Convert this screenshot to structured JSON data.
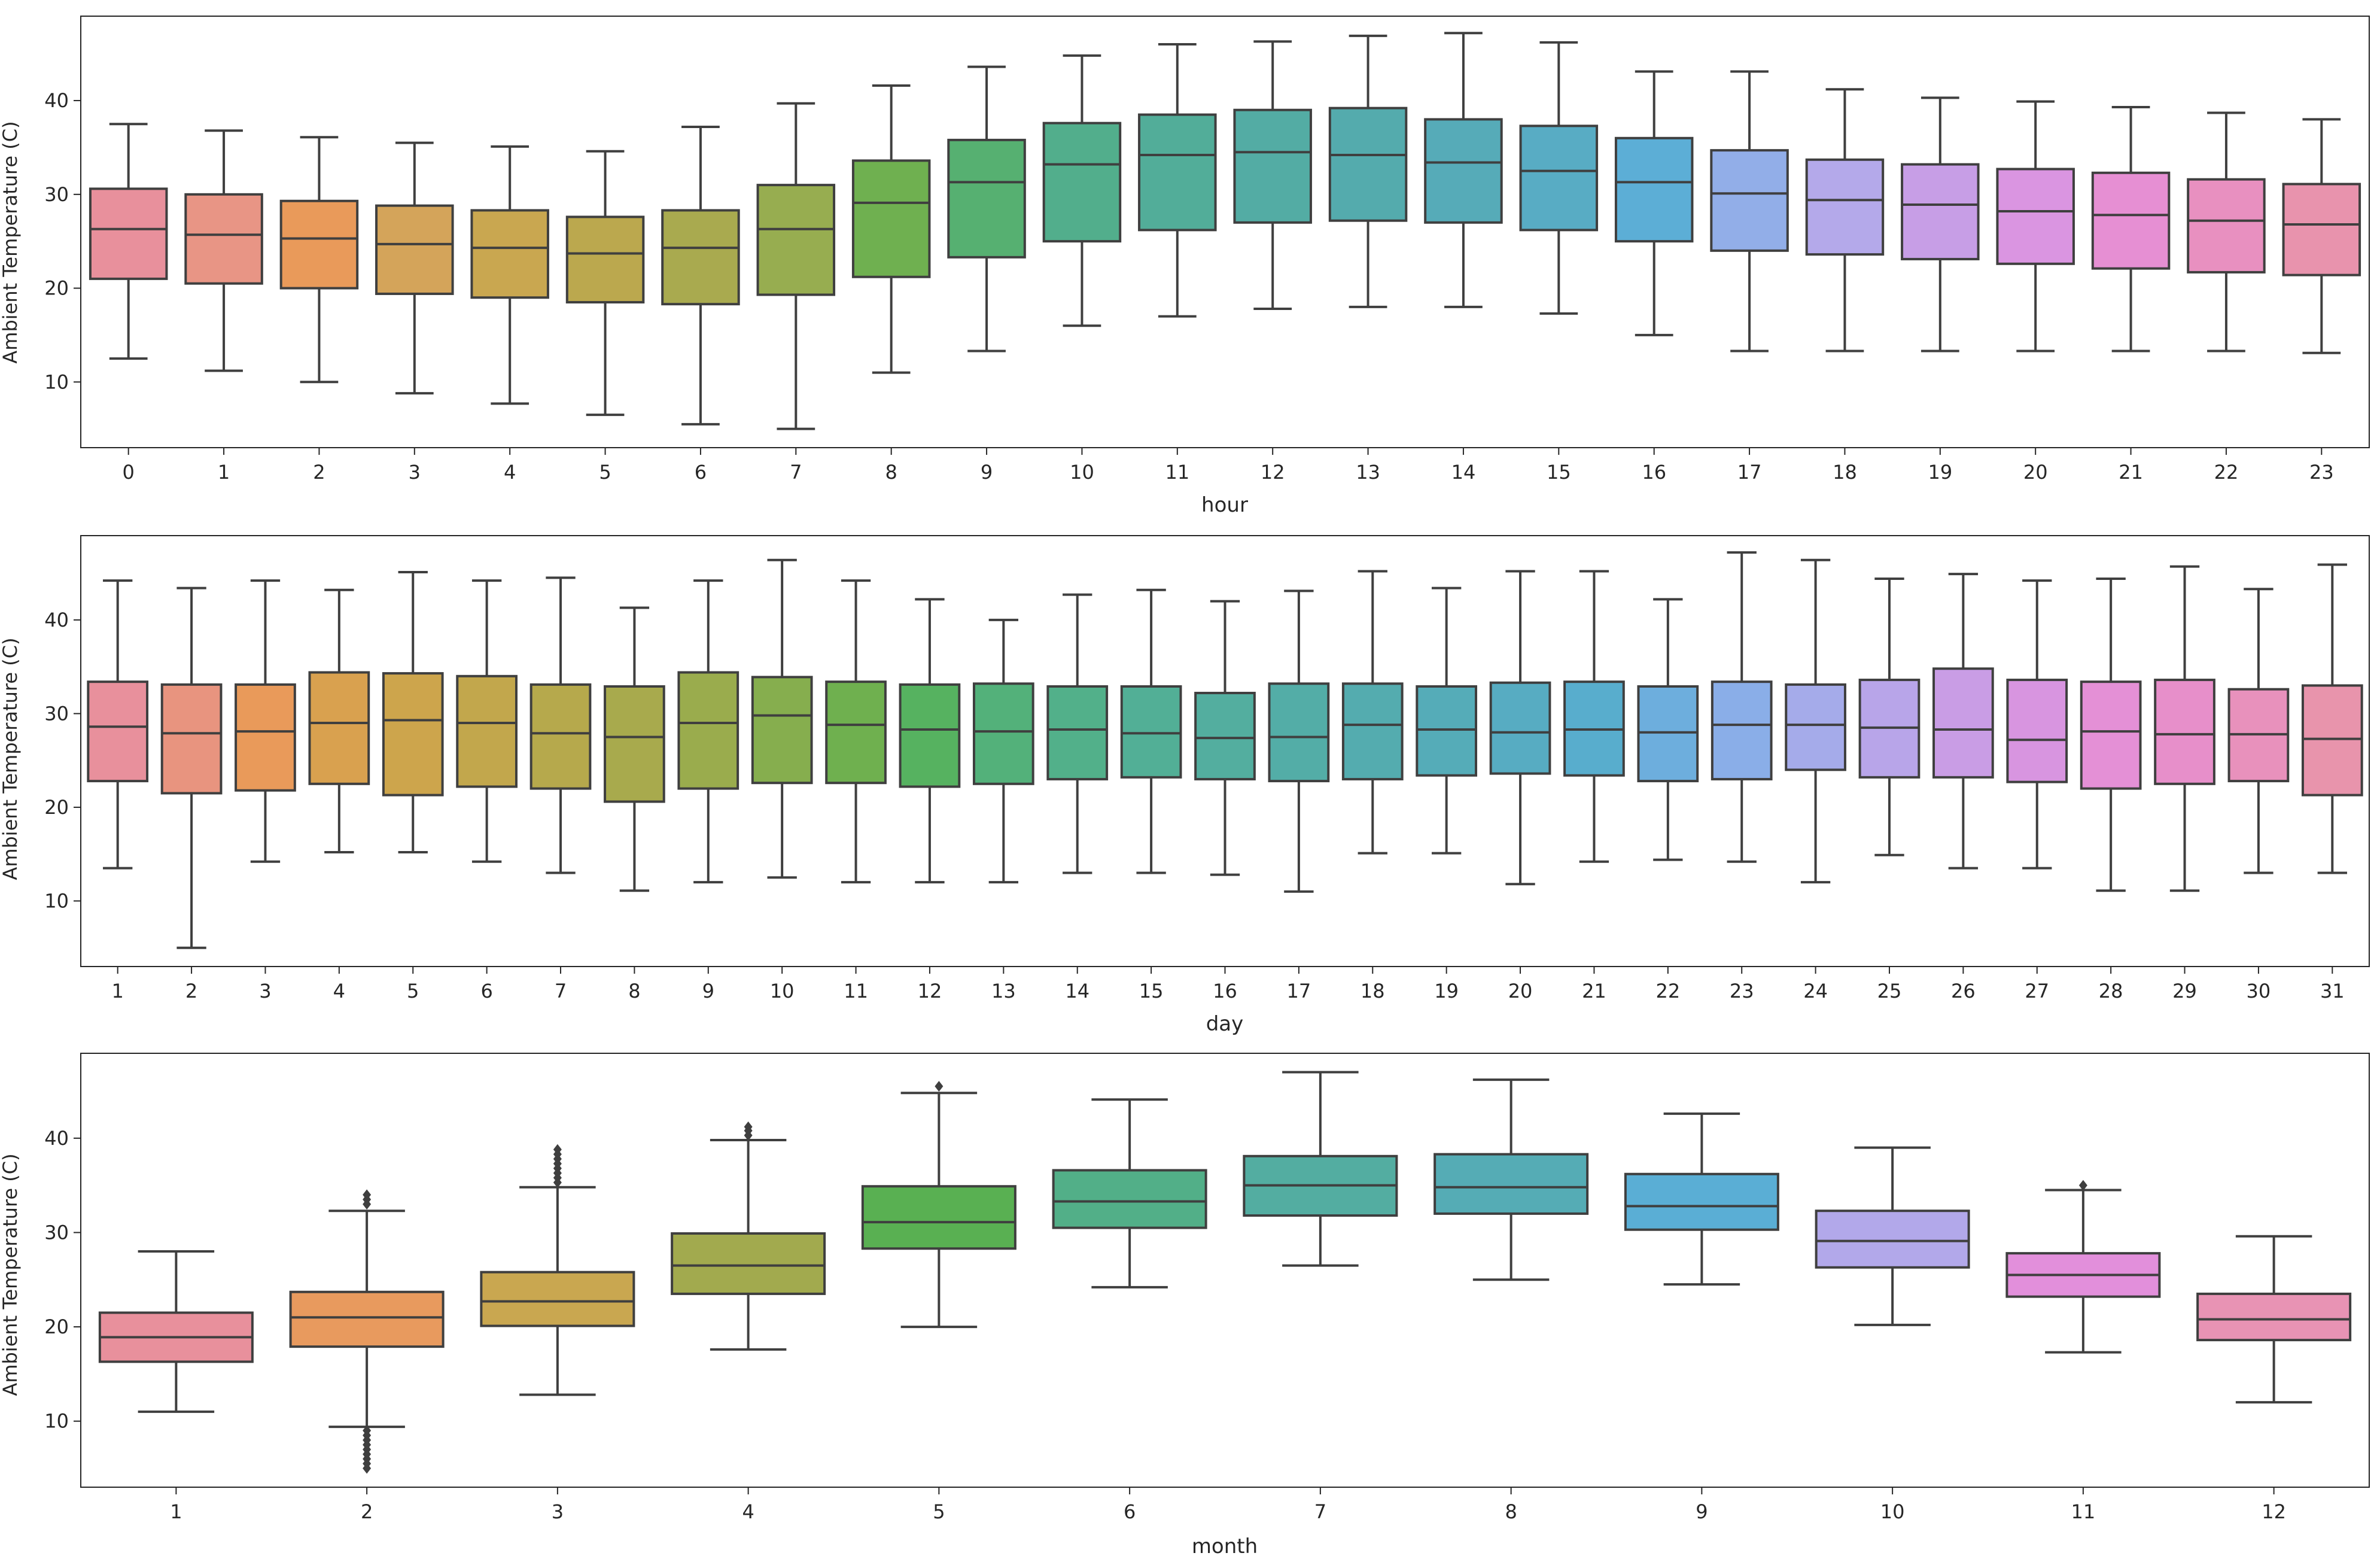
{
  "chart_data": [
    {
      "type": "box",
      "xlabel": "hour",
      "ylabel": "Ambient Temperature (C)",
      "ylim": [
        3,
        49
      ],
      "yticks": [
        10,
        20,
        30,
        40
      ],
      "categories": [
        "0",
        "1",
        "2",
        "3",
        "4",
        "5",
        "6",
        "7",
        "8",
        "9",
        "10",
        "11",
        "12",
        "13",
        "14",
        "15",
        "16",
        "17",
        "18",
        "19",
        "20",
        "21",
        "22",
        "23"
      ],
      "boxes": [
        {
          "min": 12.5,
          "q1": 21.0,
          "median": 26.3,
          "q3": 30.6,
          "max": 37.5,
          "color": "#e8909c"
        },
        {
          "min": 11.2,
          "q1": 20.5,
          "median": 25.7,
          "q3": 30.0,
          "max": 36.8,
          "color": "#e89585"
        },
        {
          "min": 10.0,
          "q1": 20.0,
          "median": 25.3,
          "q3": 29.3,
          "max": 36.1,
          "color": "#e99a5a"
        },
        {
          "min": 8.8,
          "q1": 19.4,
          "median": 24.7,
          "q3": 28.8,
          "max": 35.5,
          "color": "#d4a45a"
        },
        {
          "min": 7.7,
          "q1": 19.0,
          "median": 24.3,
          "q3": 28.3,
          "max": 35.1,
          "color": "#c9a750"
        },
        {
          "min": 6.5,
          "q1": 18.5,
          "median": 23.7,
          "q3": 27.6,
          "max": 34.6,
          "color": "#bba84e"
        },
        {
          "min": 5.5,
          "q1": 18.3,
          "median": 24.3,
          "q3": 28.3,
          "max": 37.2,
          "color": "#a9aa4f"
        },
        {
          "min": 5.0,
          "q1": 19.3,
          "median": 26.3,
          "q3": 31.0,
          "max": 39.7,
          "color": "#97ad50"
        },
        {
          "min": 11.0,
          "q1": 21.2,
          "median": 29.1,
          "q3": 33.6,
          "max": 41.6,
          "color": "#6fb050"
        },
        {
          "min": 13.3,
          "q1": 23.3,
          "median": 31.3,
          "q3": 35.8,
          "max": 43.6,
          "color": "#56b071"
        },
        {
          "min": 16.0,
          "q1": 25.0,
          "median": 33.2,
          "q3": 37.6,
          "max": 44.8,
          "color": "#52ae8c"
        },
        {
          "min": 17.0,
          "q1": 26.2,
          "median": 34.2,
          "q3": 38.5,
          "max": 46.0,
          "color": "#52ad99"
        },
        {
          "min": 17.8,
          "q1": 27.0,
          "median": 34.5,
          "q3": 39.0,
          "max": 46.3,
          "color": "#53aca4"
        },
        {
          "min": 18.0,
          "q1": 27.2,
          "median": 34.2,
          "q3": 39.2,
          "max": 46.9,
          "color": "#54abad"
        },
        {
          "min": 18.0,
          "q1": 27.0,
          "median": 33.4,
          "q3": 38.0,
          "max": 47.2,
          "color": "#56abb8"
        },
        {
          "min": 17.3,
          "q1": 26.2,
          "median": 32.5,
          "q3": 37.3,
          "max": 46.2,
          "color": "#58acc4"
        },
        {
          "min": 15.0,
          "q1": 25.0,
          "median": 31.3,
          "q3": 36.0,
          "max": 43.1,
          "color": "#5caed6"
        },
        {
          "min": 13.3,
          "q1": 24.0,
          "median": 30.1,
          "q3": 34.7,
          "max": 43.1,
          "color": "#92aee8"
        },
        {
          "min": 13.3,
          "q1": 23.6,
          "median": 29.4,
          "q3": 33.7,
          "max": 41.2,
          "color": "#b4a9ea"
        },
        {
          "min": 13.3,
          "q1": 23.1,
          "median": 28.9,
          "q3": 33.2,
          "max": 40.3,
          "color": "#c79ee6"
        },
        {
          "min": 13.3,
          "q1": 22.6,
          "median": 28.2,
          "q3": 32.7,
          "max": 39.9,
          "color": "#da95e1"
        },
        {
          "min": 13.3,
          "q1": 22.1,
          "median": 27.8,
          "q3": 32.3,
          "max": 39.3,
          "color": "#e68fd3"
        },
        {
          "min": 13.3,
          "q1": 21.7,
          "median": 27.2,
          "q3": 31.6,
          "max": 38.7,
          "color": "#e890c0"
        },
        {
          "min": 13.1,
          "q1": 21.4,
          "median": 26.8,
          "q3": 31.1,
          "max": 38.0,
          "color": "#e893ad"
        }
      ]
    },
    {
      "type": "box",
      "xlabel": "day",
      "ylabel": "Ambient Temperature (C)",
      "ylim": [
        3,
        49
      ],
      "yticks": [
        10,
        20,
        30,
        40
      ],
      "categories": [
        "1",
        "2",
        "3",
        "4",
        "5",
        "6",
        "7",
        "8",
        "9",
        "10",
        "11",
        "12",
        "13",
        "14",
        "15",
        "16",
        "17",
        "18",
        "19",
        "20",
        "21",
        "22",
        "23",
        "24",
        "25",
        "26",
        "27",
        "28",
        "29",
        "30",
        "31"
      ],
      "boxes": [
        {
          "min": 13.5,
          "q1": 22.8,
          "median": 28.6,
          "q3": 33.4,
          "max": 44.2,
          "color": "#e8909c"
        },
        {
          "min": 5.0,
          "q1": 21.5,
          "median": 27.9,
          "q3": 33.1,
          "max": 43.4,
          "color": "#e8947f"
        },
        {
          "min": 14.2,
          "q1": 21.8,
          "median": 28.1,
          "q3": 33.1,
          "max": 44.2,
          "color": "#e99a5a"
        },
        {
          "min": 15.2,
          "q1": 22.5,
          "median": 29.0,
          "q3": 34.4,
          "max": 43.2,
          "color": "#d9a14f"
        },
        {
          "min": 15.2,
          "q1": 21.3,
          "median": 29.3,
          "q3": 34.3,
          "max": 45.1,
          "color": "#cda54c"
        },
        {
          "min": 14.2,
          "q1": 22.2,
          "median": 29.0,
          "q3": 34.0,
          "max": 44.2,
          "color": "#c2a74c"
        },
        {
          "min": 13.0,
          "q1": 22.0,
          "median": 27.9,
          "q3": 33.1,
          "max": 44.5,
          "color": "#b6a94c"
        },
        {
          "min": 11.1,
          "q1": 20.6,
          "median": 27.5,
          "q3": 32.9,
          "max": 41.3,
          "color": "#a8aa4d"
        },
        {
          "min": 12.0,
          "q1": 22.0,
          "median": 29.0,
          "q3": 34.4,
          "max": 44.2,
          "color": "#9aac4d"
        },
        {
          "min": 12.5,
          "q1": 22.6,
          "median": 29.8,
          "q3": 33.9,
          "max": 46.4,
          "color": "#86ae4e"
        },
        {
          "min": 12.0,
          "q1": 22.6,
          "median": 28.8,
          "q3": 33.4,
          "max": 44.2,
          "color": "#6fb04f"
        },
        {
          "min": 12.0,
          "q1": 22.2,
          "median": 28.3,
          "q3": 33.1,
          "max": 42.2,
          "color": "#56b260"
        },
        {
          "min": 12.0,
          "q1": 22.5,
          "median": 28.1,
          "q3": 33.2,
          "max": 40.0,
          "color": "#53b17a"
        },
        {
          "min": 13.0,
          "q1": 23.0,
          "median": 28.3,
          "q3": 32.9,
          "max": 42.7,
          "color": "#52b08a"
        },
        {
          "min": 13.0,
          "q1": 23.2,
          "median": 27.9,
          "q3": 32.9,
          "max": 43.2,
          "color": "#52af96"
        },
        {
          "min": 12.8,
          "q1": 23.0,
          "median": 27.4,
          "q3": 32.2,
          "max": 42.0,
          "color": "#53ae9f"
        },
        {
          "min": 11.0,
          "q1": 22.8,
          "median": 27.5,
          "q3": 33.2,
          "max": 43.1,
          "color": "#53ada7"
        },
        {
          "min": 15.1,
          "q1": 23.0,
          "median": 28.8,
          "q3": 33.2,
          "max": 45.2,
          "color": "#54acaf"
        },
        {
          "min": 15.1,
          "q1": 23.4,
          "median": 28.3,
          "q3": 32.9,
          "max": 43.4,
          "color": "#55acb8"
        },
        {
          "min": 11.8,
          "q1": 23.6,
          "median": 28.0,
          "q3": 33.3,
          "max": 45.2,
          "color": "#57acc2"
        },
        {
          "min": 14.2,
          "q1": 23.4,
          "median": 28.3,
          "q3": 33.4,
          "max": 45.2,
          "color": "#58adcd"
        },
        {
          "min": 14.4,
          "q1": 22.8,
          "median": 28.0,
          "q3": 32.9,
          "max": 42.2,
          "color": "#6daedd"
        },
        {
          "min": 14.2,
          "q1": 23.0,
          "median": 28.8,
          "q3": 33.4,
          "max": 47.2,
          "color": "#8aaee8"
        },
        {
          "min": 12.0,
          "q1": 24.0,
          "median": 28.8,
          "q3": 33.1,
          "max": 46.4,
          "color": "#a5abea"
        },
        {
          "min": 14.9,
          "q1": 23.2,
          "median": 28.5,
          "q3": 33.6,
          "max": 44.4,
          "color": "#b8a5e9"
        },
        {
          "min": 13.5,
          "q1": 23.2,
          "median": 28.3,
          "q3": 34.8,
          "max": 44.9,
          "color": "#c99de5"
        },
        {
          "min": 13.5,
          "q1": 22.7,
          "median": 27.2,
          "q3": 33.6,
          "max": 44.2,
          "color": "#d895e0"
        },
        {
          "min": 11.1,
          "q1": 22.0,
          "median": 28.1,
          "q3": 33.4,
          "max": 44.4,
          "color": "#e490d6"
        },
        {
          "min": 11.1,
          "q1": 22.5,
          "median": 27.8,
          "q3": 33.6,
          "max": 45.7,
          "color": "#e78fca"
        },
        {
          "min": 13.0,
          "q1": 22.8,
          "median": 27.8,
          "q3": 32.6,
          "max": 43.3,
          "color": "#e891bc"
        },
        {
          "min": 13.0,
          "q1": 21.3,
          "median": 27.3,
          "q3": 33.0,
          "max": 45.9,
          "color": "#e894ac"
        }
      ]
    },
    {
      "type": "box",
      "xlabel": "month",
      "ylabel": "Ambient Temperature (C)",
      "ylim": [
        3,
        49
      ],
      "yticks": [
        10,
        20,
        30,
        40
      ],
      "categories": [
        "1",
        "2",
        "3",
        "4",
        "5",
        "6",
        "7",
        "8",
        "9",
        "10",
        "11",
        "12"
      ],
      "boxes": [
        {
          "min": 11.0,
          "q1": 16.3,
          "median": 18.9,
          "q3": 21.5,
          "max": 28.0,
          "color": "#e8909c",
          "outliers": []
        },
        {
          "min": 9.4,
          "q1": 17.9,
          "median": 21.0,
          "q3": 23.7,
          "max": 32.3,
          "color": "#e89a5e",
          "outliers": [
            5.0,
            5.5,
            6.0,
            6.5,
            7.0,
            7.5,
            8.0,
            8.5,
            9.0,
            33.0,
            33.5,
            34.0
          ]
        },
        {
          "min": 12.8,
          "q1": 20.1,
          "median": 22.7,
          "q3": 25.8,
          "max": 34.8,
          "color": "#c9a750",
          "outliers": [
            35.3,
            35.8,
            36.3,
            36.8,
            37.3,
            37.8,
            38.3,
            38.8
          ]
        },
        {
          "min": 17.6,
          "q1": 23.5,
          "median": 26.5,
          "q3": 29.9,
          "max": 39.8,
          "color": "#a2aa4e",
          "outliers": [
            40.3,
            40.8,
            41.2
          ]
        },
        {
          "min": 20.0,
          "q1": 28.3,
          "median": 31.1,
          "q3": 34.9,
          "max": 44.8,
          "color": "#59b052",
          "outliers": [
            45.5
          ]
        },
        {
          "min": 24.2,
          "q1": 30.5,
          "median": 33.3,
          "q3": 36.6,
          "max": 44.1,
          "color": "#52af88",
          "outliers": []
        },
        {
          "min": 26.5,
          "q1": 31.8,
          "median": 35.0,
          "q3": 38.1,
          "max": 47.0,
          "color": "#53ada1",
          "outliers": []
        },
        {
          "min": 25.0,
          "q1": 32.0,
          "median": 34.8,
          "q3": 38.3,
          "max": 46.2,
          "color": "#55acb5",
          "outliers": []
        },
        {
          "min": 24.5,
          "q1": 30.3,
          "median": 32.8,
          "q3": 36.2,
          "max": 42.6,
          "color": "#5aaed5",
          "outliers": []
        },
        {
          "min": 20.2,
          "q1": 26.3,
          "median": 29.1,
          "q3": 32.3,
          "max": 39.0,
          "color": "#b2a8ea",
          "outliers": []
        },
        {
          "min": 17.3,
          "q1": 23.2,
          "median": 25.5,
          "q3": 27.8,
          "max": 34.5,
          "color": "#e28fdb",
          "outliers": [
            35.0
          ]
        },
        {
          "min": 12.0,
          "q1": 18.6,
          "median": 20.8,
          "q3": 23.5,
          "max": 29.6,
          "color": "#e893b4",
          "outliers": []
        }
      ]
    }
  ]
}
